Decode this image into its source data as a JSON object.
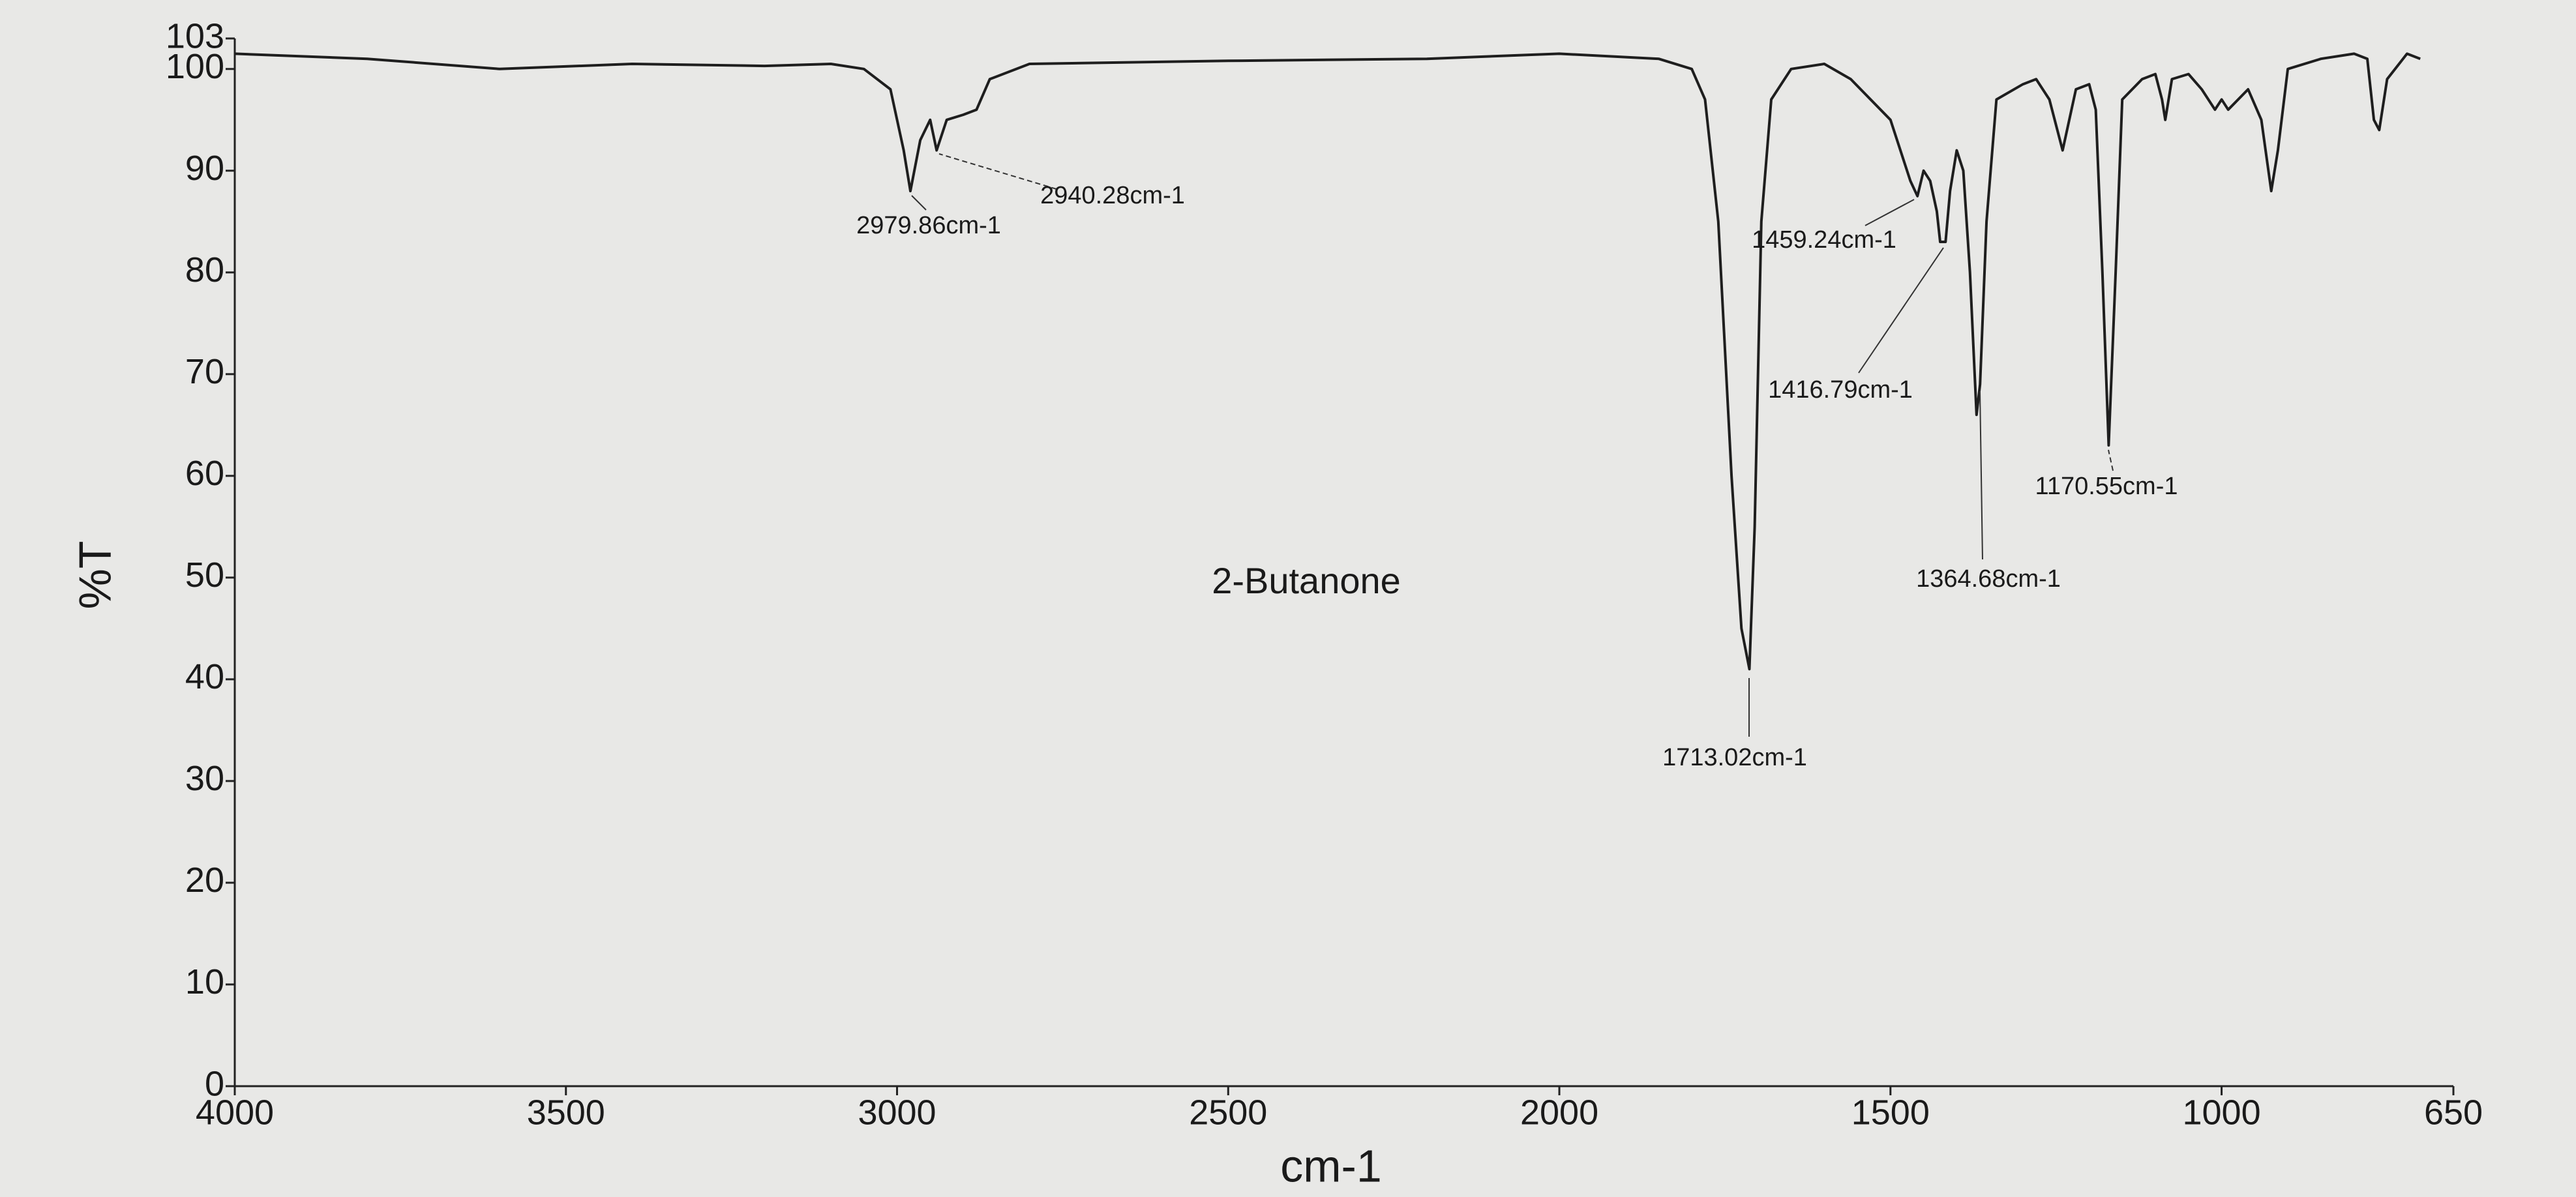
{
  "chart_data": {
    "type": "line",
    "title": "2-Butanone",
    "x_label": "cm-1",
    "y_label": "%T",
    "color": "#1e1e1e",
    "xlim": [
      4000,
      650
    ],
    "ylim": [
      0,
      103
    ],
    "xticks": [
      4000,
      3500,
      3000,
      2500,
      2000,
      1500,
      1000,
      650
    ],
    "yticks": [
      0,
      10,
      20,
      30,
      40,
      50,
      60,
      70,
      80,
      90,
      100,
      103
    ],
    "x": [
      4000,
      3800,
      3600,
      3400,
      3200,
      3100,
      3050,
      3010,
      2990,
      2979.86,
      2965,
      2950,
      2940.28,
      2925,
      2900,
      2880,
      2860,
      2800,
      2500,
      2200,
      2000,
      1850,
      1800,
      1780,
      1760,
      1740,
      1725,
      1713.02,
      1705,
      1695,
      1680,
      1650,
      1600,
      1560,
      1500,
      1470,
      1459.24,
      1450,
      1440,
      1430,
      1425,
      1416.79,
      1410,
      1400,
      1390,
      1380,
      1370,
      1364.68,
      1355,
      1340,
      1300,
      1280,
      1260,
      1240,
      1220,
      1200,
      1190,
      1180,
      1170.55,
      1160,
      1150,
      1120,
      1100,
      1090,
      1085,
      1075,
      1050,
      1030,
      1010,
      1000,
      990,
      960,
      940,
      925,
      915,
      900,
      850,
      800,
      780,
      770,
      762,
      750,
      720,
      700
    ],
    "values": [
      101.5,
      101,
      100,
      100.5,
      100.3,
      100.5,
      100,
      98,
      92,
      88,
      93,
      95,
      92,
      95,
      95.5,
      96,
      99,
      100.5,
      100.8,
      101,
      101.5,
      101,
      100,
      97,
      85,
      60,
      45,
      41,
      55,
      85,
      97,
      100,
      100.5,
      99,
      95,
      89,
      87.5,
      90,
      89,
      86,
      83,
      83,
      88,
      92,
      90,
      80,
      66,
      69,
      85,
      97,
      98.5,
      99,
      97,
      92,
      98,
      98.5,
      96,
      80,
      63,
      80,
      97,
      99,
      99.5,
      97,
      95,
      99,
      99.5,
      98,
      96,
      97,
      96,
      98,
      95,
      88,
      92,
      100,
      101,
      101.5,
      101,
      95,
      94,
      99,
      101.5,
      101
    ],
    "annotations": [
      "2979.86cm-1",
      "2940.28cm-1",
      "1459.24cm-1",
      "1416.79cm-1",
      "1364.68cm-1",
      "1170.55cm-1",
      "1713.02cm-1"
    ]
  }
}
